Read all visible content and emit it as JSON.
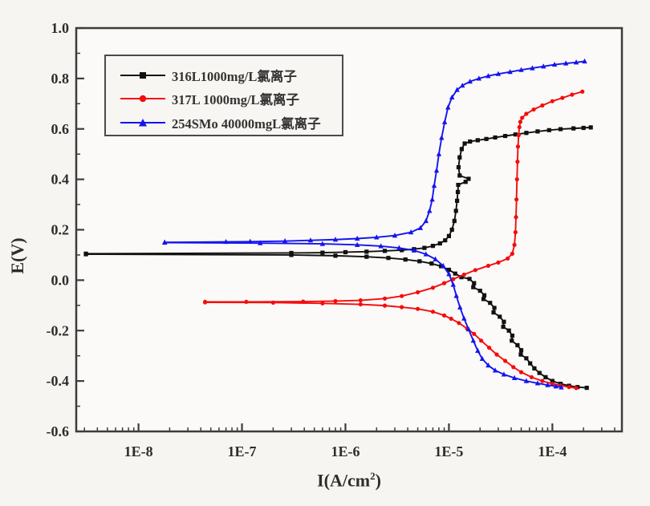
{
  "figure": {
    "background": "#f6f5f2",
    "plot_background": "#fbfaf8",
    "axis_color": "#3d3d3d",
    "text_color": "#2d2d2d"
  },
  "chart_data": {
    "type": "line",
    "title": "",
    "xlabel_parts": {
      "pre": "I(A/cm",
      "sup": "2",
      "post": ")"
    },
    "ylabel": "E(V)",
    "x_scale": "log",
    "xlim": [
      2.5e-09,
      0.00047
    ],
    "ylim": [
      -0.6,
      1.0
    ],
    "grid": false,
    "legend_position": "upper-left",
    "x_ticks": [
      {
        "value": 1e-08,
        "label": "1E-8"
      },
      {
        "value": 1e-07,
        "label": "1E-7"
      },
      {
        "value": 1e-06,
        "label": "1E-6"
      },
      {
        "value": 1e-05,
        "label": "1E-5"
      },
      {
        "value": 0.0001,
        "label": "1E-4"
      }
    ],
    "y_ticks": [
      {
        "value": 1.0,
        "label": "1.0"
      },
      {
        "value": 0.8,
        "label": "0.8"
      },
      {
        "value": 0.6,
        "label": "0.6"
      },
      {
        "value": 0.4,
        "label": "0.4"
      },
      {
        "value": 0.2,
        "label": "0.2"
      },
      {
        "value": 0.0,
        "label": "0.0"
      },
      {
        "value": -0.2,
        "label": "-0.2"
      },
      {
        "value": -0.4,
        "label": "-0.4"
      },
      {
        "value": -0.6,
        "label": "-0.6"
      }
    ],
    "series": [
      {
        "name": "316L1000mg/L氯离子",
        "color": "#111111",
        "marker": "square",
        "branches": {
          "anodic": [
            [
              3.1e-09,
              0.105
            ],
            [
              3e-07,
              0.108
            ],
            [
              6e-07,
              0.109
            ],
            [
              1e-06,
              0.111
            ],
            [
              1.6e-06,
              0.113
            ],
            [
              2.4e-06,
              0.116
            ],
            [
              3.5e-06,
              0.119
            ],
            [
              4.6e-06,
              0.123
            ],
            [
              5.8e-06,
              0.128
            ],
            [
              7e-06,
              0.136
            ],
            [
              8.2e-06,
              0.146
            ],
            [
              9.2e-06,
              0.158
            ],
            [
              1e-05,
              0.175
            ],
            [
              1.07e-05,
              0.2
            ],
            [
              1.13e-05,
              0.235
            ],
            [
              1.17e-05,
              0.275
            ],
            [
              1.2e-05,
              0.315
            ],
            [
              1.22e-05,
              0.35
            ],
            [
              1.23e-05,
              0.378
            ],
            [
              1.45e-05,
              0.39
            ],
            [
              1.55e-05,
              0.402
            ],
            [
              1.27e-05,
              0.415
            ],
            [
              1.24e-05,
              0.448
            ],
            [
              1.27e-05,
              0.487
            ],
            [
              1.33e-05,
              0.52
            ],
            [
              1.42e-05,
              0.542
            ],
            [
              1.6e-05,
              0.55
            ],
            [
              1.9e-05,
              0.555
            ],
            [
              2.3e-05,
              0.56
            ],
            [
              2.8e-05,
              0.566
            ],
            [
              3.5e-05,
              0.572
            ],
            [
              4.4e-05,
              0.578
            ],
            [
              5.6e-05,
              0.584
            ],
            [
              7.2e-05,
              0.59
            ],
            [
              9.3e-05,
              0.595
            ],
            [
              0.00012,
              0.599
            ],
            [
              0.00016,
              0.602
            ],
            [
              0.0002,
              0.604
            ],
            [
              0.000235,
              0.606
            ]
          ],
          "cathodic": [
            [
              3.1e-09,
              0.103
            ],
            [
              3e-07,
              0.1
            ],
            [
              8e-07,
              0.097
            ],
            [
              1.6e-06,
              0.093
            ],
            [
              2.6e-06,
              0.088
            ],
            [
              3.8e-06,
              0.082
            ],
            [
              5.2e-06,
              0.075
            ],
            [
              6.8e-06,
              0.066
            ],
            [
              8.4e-06,
              0.055
            ],
            [
              1e-05,
              0.041
            ],
            [
              1.15e-05,
              0.026
            ],
            [
              1.32e-05,
              0.012
            ],
            [
              1.58e-05,
              0.005
            ],
            [
              1.75e-05,
              -0.012
            ],
            [
              1.72e-05,
              -0.028
            ],
            [
              2e-05,
              -0.042
            ],
            [
              2.2e-05,
              -0.06
            ],
            [
              2.16e-05,
              -0.075
            ],
            [
              2.5e-05,
              -0.09
            ],
            [
              2.75e-05,
              -0.11
            ],
            [
              2.7e-05,
              -0.128
            ],
            [
              3.1e-05,
              -0.145
            ],
            [
              3.4e-05,
              -0.165
            ],
            [
              3.35e-05,
              -0.185
            ],
            [
              3.8e-05,
              -0.2
            ],
            [
              4.1e-05,
              -0.22
            ],
            [
              4.05e-05,
              -0.24
            ],
            [
              4.6e-05,
              -0.258
            ],
            [
              5e-05,
              -0.278
            ],
            [
              4.95e-05,
              -0.295
            ],
            [
              5.6e-05,
              -0.31
            ],
            [
              6.1e-05,
              -0.33
            ],
            [
              6.7e-05,
              -0.35
            ],
            [
              7.5e-05,
              -0.368
            ],
            [
              8.6e-05,
              -0.385
            ],
            [
              0.0001,
              -0.4
            ],
            [
              0.00012,
              -0.411
            ],
            [
              0.000145,
              -0.419
            ],
            [
              0.000175,
              -0.424
            ],
            [
              0.000215,
              -0.427
            ]
          ]
        }
      },
      {
        "name": "317L 1000mg/L氯离子",
        "color": "#f50c0c",
        "marker": "circle",
        "branches": {
          "anodic": [
            [
              4.4e-08,
              -0.086
            ],
            [
              1.1e-07,
              -0.086
            ],
            [
              3.9e-07,
              -0.085
            ],
            [
              8e-07,
              -0.083
            ],
            [
              1.4e-06,
              -0.08
            ],
            [
              2.4e-06,
              -0.073
            ],
            [
              3.5e-06,
              -0.063
            ],
            [
              5e-06,
              -0.048
            ],
            [
              7e-06,
              -0.03
            ],
            [
              9e-06,
              -0.012
            ],
            [
              1.1e-05,
              0.004
            ],
            [
              1.4e-05,
              0.022
            ],
            [
              1.8e-05,
              0.04
            ],
            [
              2.4e-05,
              0.057
            ],
            [
              3e-05,
              0.07
            ],
            [
              3.7e-05,
              0.086
            ],
            [
              4.1e-05,
              0.105
            ],
            [
              4.3e-05,
              0.14
            ],
            [
              4.4e-05,
              0.19
            ],
            [
              4.45e-05,
              0.25
            ],
            [
              4.5e-05,
              0.32
            ],
            [
              4.55e-05,
              0.4
            ],
            [
              4.6e-05,
              0.47
            ],
            [
              4.65e-05,
              0.53
            ],
            [
              4.72e-05,
              0.575
            ],
            [
              4.8e-05,
              0.607
            ],
            [
              4.9e-05,
              0.628
            ],
            [
              5.1e-05,
              0.644
            ],
            [
              5.6e-05,
              0.66
            ],
            [
              6.6e-05,
              0.677
            ],
            [
              8e-05,
              0.693
            ],
            [
              0.0001,
              0.71
            ],
            [
              0.000125,
              0.723
            ],
            [
              0.000155,
              0.736
            ],
            [
              0.000195,
              0.748
            ]
          ],
          "cathodic": [
            [
              4.4e-08,
              -0.088
            ],
            [
              2e-07,
              -0.089
            ],
            [
              6e-07,
              -0.092
            ],
            [
              1.4e-06,
              -0.096
            ],
            [
              2.4e-06,
              -0.101
            ],
            [
              3.5e-06,
              -0.107
            ],
            [
              5e-06,
              -0.114
            ],
            [
              7e-06,
              -0.125
            ],
            [
              9e-06,
              -0.14
            ],
            [
              1.05e-05,
              -0.153
            ],
            [
              1.25e-05,
              -0.17
            ],
            [
              1.5e-05,
              -0.192
            ],
            [
              1.75e-05,
              -0.213
            ],
            [
              2.05e-05,
              -0.24
            ],
            [
              2.45e-05,
              -0.268
            ],
            [
              2.9e-05,
              -0.295
            ],
            [
              3.5e-05,
              -0.32
            ],
            [
              4.2e-05,
              -0.345
            ],
            [
              5e-05,
              -0.365
            ],
            [
              6.3e-05,
              -0.385
            ],
            [
              8e-05,
              -0.4
            ],
            [
              0.0001,
              -0.411
            ],
            [
              0.00012,
              -0.418
            ],
            [
              0.000145,
              -0.424
            ],
            [
              0.00017,
              -0.428
            ]
          ]
        }
      },
      {
        "name": "254SMo 40000mgL氯离子",
        "color": "#1414f0",
        "marker": "triangle",
        "branches": {
          "anodic": [
            [
              1.79e-08,
              0.15
            ],
            [
              7e-08,
              0.152
            ],
            [
              1.2e-07,
              0.153
            ],
            [
              2.6e-07,
              0.155
            ],
            [
              4.6e-07,
              0.158
            ],
            [
              8e-07,
              0.161
            ],
            [
              1.3e-06,
              0.165
            ],
            [
              2e-06,
              0.17
            ],
            [
              3e-06,
              0.177
            ],
            [
              4.3e-06,
              0.19
            ],
            [
              5.3e-06,
              0.207
            ],
            [
              6e-06,
              0.235
            ],
            [
              6.5e-06,
              0.275
            ],
            [
              6.9e-06,
              0.32
            ],
            [
              7.2e-06,
              0.375
            ],
            [
              7.6e-06,
              0.435
            ],
            [
              8e-06,
              0.5
            ],
            [
              8.5e-06,
              0.565
            ],
            [
              9.1e-06,
              0.627
            ],
            [
              9.8e-06,
              0.685
            ],
            [
              1.07e-05,
              0.725
            ],
            [
              1.2e-05,
              0.755
            ],
            [
              1.35e-05,
              0.772
            ],
            [
              1.6e-05,
              0.788
            ],
            [
              1.95e-05,
              0.8
            ],
            [
              2.4e-05,
              0.81
            ],
            [
              3e-05,
              0.818
            ],
            [
              3.9e-05,
              0.826
            ],
            [
              5e-05,
              0.834
            ],
            [
              6.4e-05,
              0.841
            ],
            [
              8.2e-05,
              0.848
            ],
            [
              0.000105,
              0.855
            ],
            [
              0.000135,
              0.86
            ],
            [
              0.00017,
              0.864
            ],
            [
              0.000205,
              0.868
            ]
          ],
          "cathodic": [
            [
              1.79e-08,
              0.149
            ],
            [
              1.5e-07,
              0.147
            ],
            [
              6e-07,
              0.144
            ],
            [
              1.3e-06,
              0.14
            ],
            [
              2.2e-06,
              0.135
            ],
            [
              3.3e-06,
              0.128
            ],
            [
              4.6e-06,
              0.118
            ],
            [
              6e-06,
              0.103
            ],
            [
              7.4e-06,
              0.083
            ],
            [
              8.8e-06,
              0.057
            ],
            [
              1e-05,
              0.024
            ],
            [
              1.1e-05,
              -0.018
            ],
            [
              1.18e-05,
              -0.062
            ],
            [
              1.28e-05,
              -0.108
            ],
            [
              1.4e-05,
              -0.152
            ],
            [
              1.55e-05,
              -0.195
            ],
            [
              1.72e-05,
              -0.24
            ],
            [
              1.9e-05,
              -0.28
            ],
            [
              2.1e-05,
              -0.312
            ],
            [
              2.4e-05,
              -0.338
            ],
            [
              2.8e-05,
              -0.358
            ],
            [
              3.4e-05,
              -0.374
            ],
            [
              4.3e-05,
              -0.388
            ],
            [
              5.6e-05,
              -0.4
            ],
            [
              7.2e-05,
              -0.409
            ],
            [
              9e-05,
              -0.416
            ],
            [
              0.000108,
              -0.421
            ],
            [
              0.000122,
              -0.425
            ]
          ]
        }
      }
    ]
  }
}
